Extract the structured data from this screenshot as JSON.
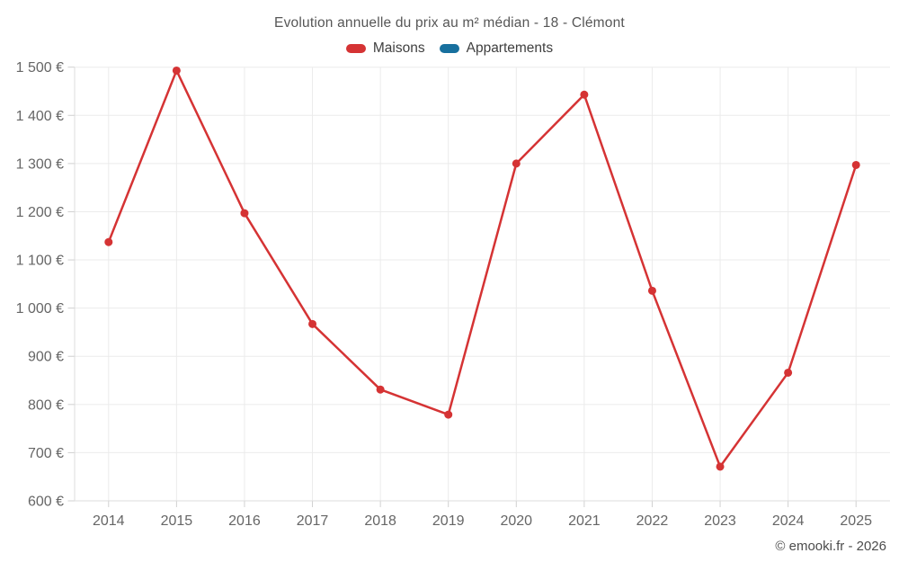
{
  "title": "Evolution annuelle du prix au m² médian - 18 - Clémont",
  "legend": [
    {
      "label": "Maisons",
      "color": "#d53334"
    },
    {
      "label": "Appartements",
      "color": "#17709e"
    }
  ],
  "footer": "© emooki.fr - 2026",
  "chart_data": {
    "type": "line",
    "title": "Evolution annuelle du prix au m² médian - 18 - Clémont",
    "x": [
      2014,
      2015,
      2016,
      2017,
      2018,
      2019,
      2020,
      2021,
      2022,
      2023,
      2024,
      2025
    ],
    "series": [
      {
        "name": "Maisons",
        "color": "#d53334",
        "values": [
          1137,
          1493,
          1197,
          967,
          831,
          779,
          1300,
          1443,
          1036,
          671,
          866,
          1297
        ]
      },
      {
        "name": "Appartements",
        "color": "#17709e",
        "values": []
      }
    ],
    "ylabel": "",
    "xlabel": "",
    "ylim": [
      600,
      1500
    ],
    "ytick_step": 100,
    "ytick_labels": [
      "600 €",
      "700 €",
      "800 €",
      "900 €",
      "1 000 €",
      "1 100 €",
      "1 200 €",
      "1 300 €",
      "1 400 €",
      "1 500 €"
    ],
    "grid": true,
    "legend_position": "top",
    "marker": "circle",
    "unit": "€"
  }
}
